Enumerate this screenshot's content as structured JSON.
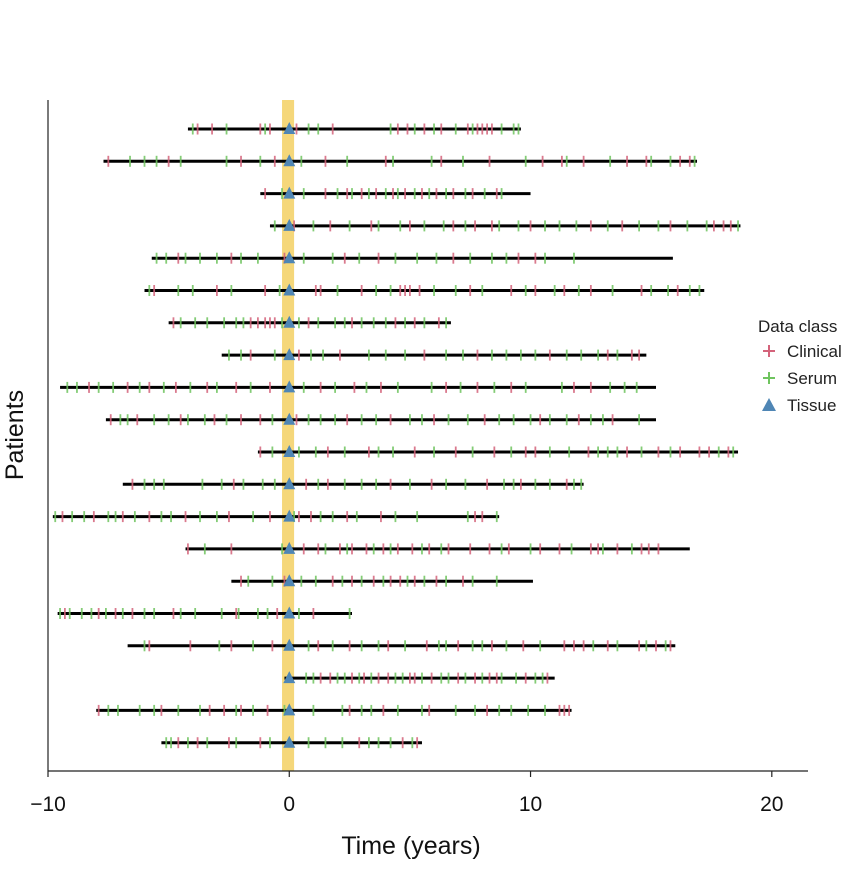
{
  "chart_data": {
    "type": "scatter",
    "xlabel": "Time (years)",
    "ylabel": "Patients",
    "xlim": [
      -10,
      21.5
    ],
    "x_ticks": [
      -10,
      0,
      10,
      20
    ],
    "x_tick_labels": [
      "−10",
      "0",
      "10",
      "20"
    ],
    "grid": false,
    "legend_placement": "right",
    "highlight_band": {
      "x_range": [
        -0.3,
        0.2
      ],
      "color": "#f5d77a"
    },
    "legend": {
      "title": "Data class",
      "entries": [
        {
          "label": "Clinical",
          "marker": "plus",
          "color": "#d4637b"
        },
        {
          "label": "Serum",
          "marker": "plus",
          "color": "#6fc45f"
        },
        {
          "label": "Tissue",
          "marker": "triangle",
          "color": "#4f86b5"
        }
      ]
    },
    "patients": [
      {
        "start": -4.2,
        "end": 9.6,
        "clinical": [
          -3.8,
          -3.2,
          -1.2,
          -0.8,
          0.3,
          1.8,
          4.5,
          4.9,
          5.6,
          6.3,
          7.4,
          7.8,
          8.0,
          8.2,
          8.4
        ],
        "serum": [
          -4.0,
          -2.6,
          -1.0,
          0.8,
          1.2,
          4.2,
          5.2,
          6.0,
          6.9,
          7.6,
          8.8,
          9.3,
          9.5
        ]
      },
      {
        "start": -7.7,
        "end": 16.9,
        "clinical": [
          -7.5,
          -5.0,
          -2.0,
          -0.6,
          1.5,
          4.0,
          6.3,
          8.3,
          10.5,
          11.3,
          12.2,
          14.0,
          14.8,
          16.2,
          16.6
        ],
        "serum": [
          -6.6,
          -6.0,
          -5.5,
          -4.5,
          -2.6,
          -1.2,
          0.5,
          2.4,
          4.3,
          5.9,
          7.2,
          9.8,
          11.5,
          13.3,
          15.0,
          15.8,
          16.8
        ]
      },
      {
        "start": -1.2,
        "end": 10.0,
        "clinical": [
          -1.0,
          1.5,
          2.4,
          3.0,
          3.6,
          4.3,
          4.8,
          5.5,
          6.1,
          6.8,
          7.6,
          8.6
        ],
        "serum": [
          -0.3,
          0.6,
          2.0,
          2.6,
          3.3,
          4.0,
          4.5,
          5.2,
          5.8,
          6.5,
          7.3,
          8.1,
          8.8
        ]
      },
      {
        "start": -0.8,
        "end": 18.7,
        "clinical": [
          0.2,
          1.7,
          3.4,
          5.0,
          6.8,
          7.7,
          8.4,
          10.0,
          12.5,
          13.8,
          15.8,
          17.6,
          18.0,
          18.3
        ],
        "serum": [
          -0.6,
          1.0,
          2.5,
          3.7,
          4.6,
          5.6,
          6.4,
          7.3,
          8.7,
          9.5,
          10.6,
          11.2,
          11.9,
          13.2,
          14.5,
          15.3,
          16.5,
          17.3,
          18.6
        ]
      },
      {
        "start": -5.7,
        "end": 15.9,
        "clinical": [
          -4.6,
          -2.4,
          -0.2,
          2.3,
          3.7,
          6.8,
          9.5,
          10.2
        ],
        "serum": [
          -5.5,
          -5.1,
          -4.3,
          -3.7,
          -3.0,
          -2.0,
          -1.3,
          0.6,
          1.8,
          2.9,
          4.4,
          5.3,
          6.1,
          7.5,
          8.4,
          9.0,
          10.6,
          11.8
        ]
      },
      {
        "start": -6.0,
        "end": 17.2,
        "clinical": [
          -5.6,
          -3.0,
          -1.0,
          1.1,
          1.3,
          3.0,
          4.6,
          4.8,
          5.0,
          5.4,
          7.5,
          9.2,
          10.2,
          11.4,
          12.5,
          14.6,
          16.1
        ],
        "serum": [
          -5.8,
          -4.6,
          -4.0,
          -2.4,
          -0.4,
          2.0,
          3.6,
          4.2,
          6.0,
          6.9,
          8.0,
          9.8,
          11.0,
          12.0,
          13.4,
          15.0,
          15.7,
          16.6,
          17.0
        ]
      },
      {
        "start": -5.0,
        "end": 6.7,
        "clinical": [
          -4.8,
          -1.6,
          -1.3,
          -1.0,
          -0.8,
          -0.6,
          0.8,
          2.6,
          4.4,
          5.2,
          6.2
        ],
        "serum": [
          -4.5,
          -3.9,
          -3.4,
          -2.7,
          -2.2,
          -1.9,
          -0.3,
          0.4,
          1.2,
          1.9,
          2.3,
          3.0,
          3.5,
          4.0,
          4.8,
          5.6,
          6.5
        ]
      },
      {
        "start": -2.8,
        "end": 14.8,
        "clinical": [
          -1.6,
          0.4,
          2.1,
          5.6,
          7.8,
          10.8,
          13.2,
          14.2,
          14.5
        ],
        "serum": [
          -2.5,
          -2.0,
          -0.6,
          0.9,
          1.4,
          3.3,
          4.0,
          4.8,
          6.5,
          7.2,
          8.4,
          9.0,
          9.6,
          10.2,
          11.5,
          12.1,
          12.8,
          13.6
        ]
      },
      {
        "start": -9.5,
        "end": 15.2,
        "clinical": [
          -8.3,
          -6.7,
          -5.8,
          -4.7,
          -3.4,
          -2.2,
          -0.8,
          1.3,
          2.7,
          3.8,
          6.5,
          7.8,
          9.2,
          11.8,
          12.5
        ],
        "serum": [
          -9.2,
          -8.8,
          -7.9,
          -7.3,
          -6.2,
          -5.2,
          -4.1,
          -3.0,
          -1.6,
          0.6,
          1.9,
          3.2,
          4.5,
          5.9,
          7.1,
          8.5,
          9.8,
          11.3,
          13.3,
          13.9,
          14.4
        ]
      },
      {
        "start": -7.6,
        "end": 15.2,
        "clinical": [
          -7.4,
          -6.3,
          -4.5,
          -3.1,
          -2.0,
          -1.2,
          0.3,
          2.4,
          4.2,
          6.0,
          8.1,
          10.4,
          12.0,
          13.4
        ],
        "serum": [
          -7.0,
          -6.7,
          -5.6,
          -5.0,
          -4.2,
          -3.5,
          -2.6,
          -0.7,
          0.8,
          1.3,
          1.9,
          3.0,
          3.6,
          5.0,
          5.5,
          6.6,
          7.4,
          8.7,
          9.3,
          10.0,
          10.8,
          11.5,
          12.5,
          13.0,
          14.5
        ]
      },
      {
        "start": -1.3,
        "end": 18.6,
        "clinical": [
          -1.2,
          1.6,
          3.3,
          5.2,
          6.9,
          8.5,
          9.8,
          10.2,
          12.4,
          14.0,
          15.3,
          16.2,
          17.0,
          17.4,
          18.2
        ],
        "serum": [
          -0.7,
          0.4,
          1.1,
          2.3,
          3.7,
          4.3,
          6.0,
          7.6,
          9.2,
          10.8,
          11.6,
          12.8,
          13.2,
          13.6,
          14.6,
          15.8,
          17.8,
          18.4
        ]
      },
      {
        "start": -6.9,
        "end": 12.2,
        "clinical": [
          -6.5,
          -2.3,
          0.7,
          1.6,
          4.2,
          5.9,
          8.2,
          9.6,
          11.5
        ],
        "serum": [
          -6.0,
          -5.6,
          -5.2,
          -3.6,
          -2.8,
          -1.9,
          -1.1,
          -0.6,
          1.2,
          2.3,
          3.0,
          3.6,
          5.0,
          6.5,
          7.3,
          8.9,
          9.3,
          10.2,
          10.8,
          11.8,
          12.1
        ]
      },
      {
        "start": -9.8,
        "end": 8.7,
        "clinical": [
          -9.4,
          -8.1,
          -6.9,
          -5.8,
          -4.3,
          -2.5,
          -0.8,
          0.4,
          0.9,
          2.4,
          3.8,
          7.7,
          8.0
        ],
        "serum": [
          -9.7,
          -9.0,
          -8.5,
          -7.5,
          -7.2,
          -6.4,
          -5.3,
          -4.9,
          -3.7,
          -3.0,
          -1.5,
          0.2,
          1.3,
          1.8,
          2.8,
          4.4,
          5.3,
          7.4,
          8.6
        ]
      },
      {
        "start": -4.3,
        "end": 16.6,
        "clinical": [
          -4.2,
          -2.4,
          0.6,
          1.2,
          2.1,
          2.6,
          3.2,
          3.9,
          4.5,
          5.1,
          5.8,
          6.6,
          7.5,
          8.3,
          9.1,
          10.4,
          11.2,
          12.5,
          12.8,
          13.6,
          14.6,
          14.9,
          15.3
        ],
        "serum": [
          -3.5,
          -0.3,
          1.5,
          2.4,
          3.5,
          4.2,
          5.5,
          6.3,
          8.8,
          10.0,
          11.7,
          13.0,
          14.2
        ]
      },
      {
        "start": -2.4,
        "end": 10.1,
        "clinical": [
          -2.0,
          -0.2,
          1.8,
          2.6,
          3.5,
          4.2,
          4.6,
          5.2,
          6.1,
          7.2
        ],
        "serum": [
          -1.7,
          -0.7,
          0.5,
          1.1,
          2.2,
          3.0,
          3.9,
          4.9,
          5.6,
          6.5,
          7.6,
          8.6
        ]
      },
      {
        "start": -9.6,
        "end": 2.6,
        "clinical": [
          -9.3,
          -7.9,
          -7.2,
          -6.5,
          -4.8,
          -2.2,
          -0.5,
          1.0
        ],
        "serum": [
          -9.5,
          -9.1,
          -8.6,
          -8.2,
          -7.6,
          -6.9,
          -6.0,
          -5.6,
          -4.5,
          -3.9,
          -2.8,
          -2.1,
          -1.3,
          -0.9,
          0.4,
          2.5
        ]
      },
      {
        "start": -6.7,
        "end": 16.0,
        "clinical": [
          -5.8,
          -4.1,
          -2.4,
          -0.7,
          1.2,
          2.5,
          4.1,
          5.7,
          7.0,
          8.4,
          9.7,
          11.4,
          11.8,
          12.2,
          13.2,
          14.5,
          15.2,
          15.8
        ],
        "serum": [
          -6.0,
          -2.9,
          -1.5,
          0.8,
          1.8,
          3.0,
          3.7,
          4.8,
          6.2,
          6.5,
          7.6,
          8.0,
          9.0,
          10.4,
          12.6,
          13.6,
          14.8,
          15.6
        ]
      },
      {
        "start": -0.2,
        "end": 11.0,
        "clinical": [
          1.3,
          1.7,
          2.6,
          3.1,
          3.7,
          4.1,
          5.0,
          5.2,
          5.9,
          7.0,
          7.7,
          8.3,
          8.6,
          9.8,
          10.7
        ],
        "serum": [
          0.7,
          1.0,
          2.0,
          2.3,
          2.9,
          3.4,
          4.4,
          4.7,
          5.5,
          6.3,
          6.6,
          7.3,
          8.0,
          8.8,
          9.4,
          10.2,
          10.5
        ]
      },
      {
        "start": -8.0,
        "end": 11.7,
        "clinical": [
          -7.9,
          -5.3,
          -3.3,
          -2.7,
          -2.0,
          -0.9,
          2.5,
          3.9,
          5.8,
          8.2,
          11.2,
          11.4,
          11.6
        ],
        "serum": [
          -7.5,
          -7.1,
          -6.2,
          -5.6,
          -4.6,
          -3.7,
          -2.2,
          -1.5,
          -0.2,
          1.0,
          2.2,
          3.0,
          3.4,
          4.5,
          5.5,
          6.9,
          7.7,
          8.7,
          9.2,
          9.9,
          10.6
        ]
      },
      {
        "start": -5.3,
        "end": 5.5,
        "clinical": [
          -4.6,
          -3.8,
          -2.5,
          -1.2,
          2.9,
          4.7,
          5.3
        ],
        "serum": [
          -5.1,
          -4.9,
          -4.2,
          -3.4,
          -2.2,
          -0.8,
          0.8,
          1.5,
          2.2,
          3.3,
          3.7,
          4.2,
          5.1
        ]
      }
    ]
  }
}
